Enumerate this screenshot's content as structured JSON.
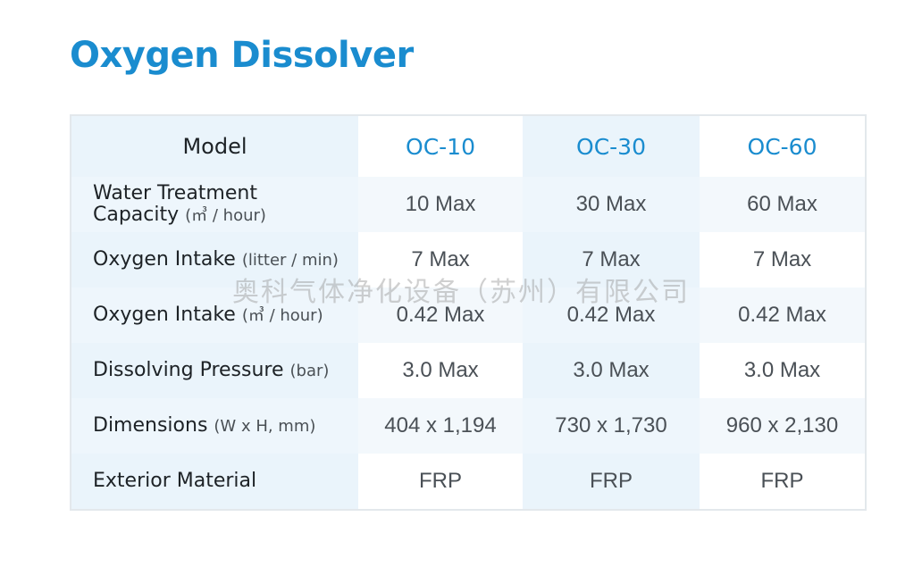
{
  "title": "Oxygen Dissolver",
  "table": {
    "header_label": "Model",
    "models": [
      "OC-10",
      "OC-30",
      "OC-60"
    ],
    "rows": [
      {
        "label_lines": [
          "Water Treatment",
          "Capacity"
        ],
        "unit": "(㎥ / hour)",
        "values": [
          "10 Max",
          "30 Max",
          "60 Max"
        ]
      },
      {
        "label": "Oxygen Intake",
        "unit": "(litter / min)",
        "values": [
          "7 Max",
          "7 Max",
          "7 Max"
        ]
      },
      {
        "label": "Oxygen Intake",
        "unit": "(㎥ / hour)",
        "values": [
          "0.42 Max",
          "0.42 Max",
          "0.42 Max"
        ]
      },
      {
        "label": "Dissolving Pressure",
        "unit": "(bar)",
        "values": [
          "3.0 Max",
          "3.0 Max",
          "3.0 Max"
        ]
      },
      {
        "label": "Dimensions",
        "unit": "(W x H, mm)",
        "values": [
          "404 x 1,194",
          "730 x 1,730",
          "960 x 2,130"
        ]
      },
      {
        "label": "Exterior Material",
        "unit": "",
        "values": [
          "FRP",
          "FRP",
          "FRP"
        ]
      }
    ]
  },
  "watermark": "奥科气体净化设备（苏州）有限公司",
  "colors": {
    "accent": "#1a8ccf",
    "text": "#1d2226",
    "border": "#e3e8ec"
  }
}
